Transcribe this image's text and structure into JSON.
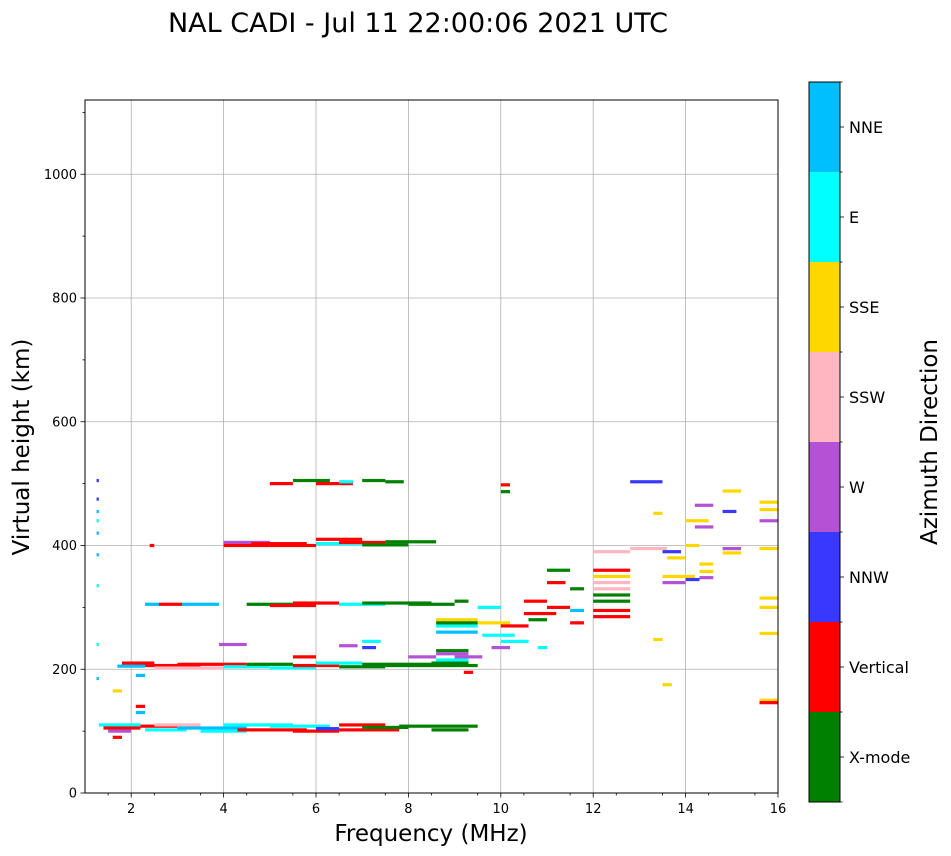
{
  "chart_data": {
    "type": "scatter",
    "title": "NAL CADI - Jul 11 22:00:06 2021 UTC",
    "xlabel": "Frequency (MHz)",
    "ylabel": "Virtual height (km)",
    "xlim": [
      1,
      16
    ],
    "ylim": [
      0,
      1120
    ],
    "xticks": [
      2,
      4,
      6,
      8,
      10,
      12,
      14,
      16
    ],
    "yticks": [
      0,
      200,
      400,
      600,
      800,
      1000
    ],
    "grid": true,
    "colorbar": {
      "label": "Azimuth Direction",
      "categories": [
        "X-mode",
        "Vertical",
        "NNW",
        "W",
        "SSW",
        "SSE",
        "E",
        "NNE"
      ],
      "colors": {
        "X-mode": "#008000",
        "Vertical": "#ff0000",
        "NNW": "#3838ff",
        "W": "#b452d6",
        "SSW": "#ffb6c1",
        "SSE": "#ffd700",
        "E": "#00ffff",
        "NNE": "#00bfff"
      }
    },
    "traces": [
      {
        "x0": 1.3,
        "x1": 2.2,
        "y": 110,
        "dir": "E"
      },
      {
        "x0": 1.4,
        "x1": 2.2,
        "y": 105,
        "dir": "Vertical"
      },
      {
        "x0": 1.5,
        "x1": 2.0,
        "y": 100,
        "dir": "W"
      },
      {
        "x0": 2.2,
        "x1": 3.0,
        "y": 108,
        "dir": "Vertical"
      },
      {
        "x0": 2.3,
        "x1": 3.2,
        "y": 102,
        "dir": "E"
      },
      {
        "x0": 2.5,
        "x1": 3.5,
        "y": 110,
        "dir": "SSW"
      },
      {
        "x0": 3.0,
        "x1": 4.5,
        "y": 105,
        "dir": "NNE"
      },
      {
        "x0": 3.5,
        "x1": 4.5,
        "y": 100,
        "dir": "E"
      },
      {
        "x0": 4.0,
        "x1": 5.5,
        "y": 110,
        "dir": "E"
      },
      {
        "x0": 4.3,
        "x1": 5.8,
        "y": 102,
        "dir": "Vertical"
      },
      {
        "x0": 5.0,
        "x1": 6.3,
        "y": 108,
        "dir": "E"
      },
      {
        "x0": 5.5,
        "x1": 6.5,
        "y": 100,
        "dir": "Vertical"
      },
      {
        "x0": 6.0,
        "x1": 6.5,
        "y": 104,
        "dir": "NNW"
      },
      {
        "x0": 6.5,
        "x1": 7.5,
        "y": 110,
        "dir": "Vertical"
      },
      {
        "x0": 6.5,
        "x1": 7.8,
        "y": 102,
        "dir": "Vertical"
      },
      {
        "x0": 7.0,
        "x1": 8.0,
        "y": 106,
        "dir": "X-mode"
      },
      {
        "x0": 7.8,
        "x1": 9.5,
        "y": 108,
        "dir": "X-mode"
      },
      {
        "x0": 8.5,
        "x1": 9.3,
        "y": 102,
        "dir": "X-mode"
      },
      {
        "x0": 1.7,
        "x1": 2.3,
        "y": 205,
        "dir": "NNE"
      },
      {
        "x0": 1.8,
        "x1": 2.5,
        "y": 210,
        "dir": "Vertical"
      },
      {
        "x0": 2.3,
        "x1": 3.5,
        "y": 206,
        "dir": "Vertical"
      },
      {
        "x0": 2.5,
        "x1": 4.0,
        "y": 202,
        "dir": "SSW"
      },
      {
        "x0": 3.0,
        "x1": 4.5,
        "y": 208,
        "dir": "Vertical"
      },
      {
        "x0": 4.0,
        "x1": 5.0,
        "y": 204,
        "dir": "E"
      },
      {
        "x0": 4.5,
        "x1": 5.5,
        "y": 208,
        "dir": "X-mode"
      },
      {
        "x0": 5.0,
        "x1": 6.0,
        "y": 202,
        "dir": "E"
      },
      {
        "x0": 5.5,
        "x1": 6.5,
        "y": 206,
        "dir": "Vertical"
      },
      {
        "x0": 6.0,
        "x1": 7.0,
        "y": 210,
        "dir": "E"
      },
      {
        "x0": 6.5,
        "x1": 7.5,
        "y": 204,
        "dir": "X-mode"
      },
      {
        "x0": 7.0,
        "x1": 8.5,
        "y": 208,
        "dir": "X-mode"
      },
      {
        "x0": 7.5,
        "x1": 9.5,
        "y": 206,
        "dir": "X-mode"
      },
      {
        "x0": 8.5,
        "x1": 9.3,
        "y": 210,
        "dir": "X-mode"
      },
      {
        "x0": 3.9,
        "x1": 4.5,
        "y": 240,
        "dir": "W"
      },
      {
        "x0": 6.5,
        "x1": 6.9,
        "y": 238,
        "dir": "W"
      },
      {
        "x0": 8.0,
        "x1": 8.6,
        "y": 220,
        "dir": "W"
      },
      {
        "x0": 2.3,
        "x1": 2.6,
        "y": 305,
        "dir": "NNE"
      },
      {
        "x0": 2.6,
        "x1": 3.1,
        "y": 305,
        "dir": "Vertical"
      },
      {
        "x0": 3.1,
        "x1": 3.9,
        "y": 305,
        "dir": "NNE"
      },
      {
        "x0": 4.5,
        "x1": 5.5,
        "y": 305,
        "dir": "X-mode"
      },
      {
        "x0": 5.0,
        "x1": 6.0,
        "y": 303,
        "dir": "Vertical"
      },
      {
        "x0": 5.5,
        "x1": 6.5,
        "y": 307,
        "dir": "Vertical"
      },
      {
        "x0": 6.5,
        "x1": 7.5,
        "y": 305,
        "dir": "E"
      },
      {
        "x0": 7.0,
        "x1": 8.5,
        "y": 307,
        "dir": "X-mode"
      },
      {
        "x0": 8.0,
        "x1": 9.0,
        "y": 305,
        "dir": "X-mode"
      },
      {
        "x0": 9.0,
        "x1": 9.3,
        "y": 310,
        "dir": "X-mode"
      },
      {
        "x0": 4.0,
        "x1": 5.0,
        "y": 405,
        "dir": "W"
      },
      {
        "x0": 4.0,
        "x1": 5.0,
        "y": 400,
        "dir": "Vertical"
      },
      {
        "x0": 4.6,
        "x1": 5.8,
        "y": 403,
        "dir": "Vertical"
      },
      {
        "x0": 5.0,
        "x1": 6.0,
        "y": 400,
        "dir": "Vertical"
      },
      {
        "x0": 6.0,
        "x1": 7.0,
        "y": 403,
        "dir": "E"
      },
      {
        "x0": 6.5,
        "x1": 7.5,
        "y": 405,
        "dir": "Vertical"
      },
      {
        "x0": 7.0,
        "x1": 8.0,
        "y": 401,
        "dir": "X-mode"
      },
      {
        "x0": 7.5,
        "x1": 8.6,
        "y": 406,
        "dir": "X-mode"
      },
      {
        "x0": 6.0,
        "x1": 7.0,
        "y": 410,
        "dir": "Vertical"
      },
      {
        "x0": 5.0,
        "x1": 5.5,
        "y": 500,
        "dir": "Vertical"
      },
      {
        "x0": 5.5,
        "x1": 6.3,
        "y": 505,
        "dir": "X-mode"
      },
      {
        "x0": 6.0,
        "x1": 6.8,
        "y": 500,
        "dir": "Vertical"
      },
      {
        "x0": 6.5,
        "x1": 6.8,
        "y": 503,
        "dir": "E"
      },
      {
        "x0": 7.0,
        "x1": 7.5,
        "y": 505,
        "dir": "X-mode"
      },
      {
        "x0": 7.5,
        "x1": 7.9,
        "y": 503,
        "dir": "X-mode"
      },
      {
        "x0": 8.6,
        "x1": 9.5,
        "y": 280,
        "dir": "SSE"
      },
      {
        "x0": 8.6,
        "x1": 9.5,
        "y": 270,
        "dir": "E"
      },
      {
        "x0": 8.6,
        "x1": 9.5,
        "y": 275,
        "dir": "X-mode"
      },
      {
        "x0": 8.6,
        "x1": 9.5,
        "y": 260,
        "dir": "NNE"
      },
      {
        "x0": 8.6,
        "x1": 9.3,
        "y": 230,
        "dir": "X-mode"
      },
      {
        "x0": 8.6,
        "x1": 9.3,
        "y": 225,
        "dir": "W"
      },
      {
        "x0": 8.6,
        "x1": 9.3,
        "y": 215,
        "dir": "E"
      },
      {
        "x0": 9.0,
        "x1": 9.6,
        "y": 220,
        "dir": "W"
      },
      {
        "x0": 9.5,
        "x1": 10.0,
        "y": 300,
        "dir": "E"
      },
      {
        "x0": 9.5,
        "x1": 10.2,
        "y": 275,
        "dir": "SSE"
      },
      {
        "x0": 9.6,
        "x1": 10.3,
        "y": 255,
        "dir": "E"
      },
      {
        "x0": 10.0,
        "x1": 10.6,
        "y": 270,
        "dir": "Vertical"
      },
      {
        "x0": 10.0,
        "x1": 10.6,
        "y": 245,
        "dir": "E"
      },
      {
        "x0": 10.5,
        "x1": 11.0,
        "y": 310,
        "dir": "Vertical"
      },
      {
        "x0": 10.5,
        "x1": 11.2,
        "y": 290,
        "dir": "Vertical"
      },
      {
        "x0": 10.6,
        "x1": 11.0,
        "y": 280,
        "dir": "X-mode"
      },
      {
        "x0": 11.0,
        "x1": 11.5,
        "y": 300,
        "dir": "Vertical"
      },
      {
        "x0": 11.0,
        "x1": 11.5,
        "y": 360,
        "dir": "X-mode"
      },
      {
        "x0": 11.5,
        "x1": 11.8,
        "y": 330,
        "dir": "X-mode"
      },
      {
        "x0": 11.5,
        "x1": 11.8,
        "y": 295,
        "dir": "NNE"
      },
      {
        "x0": 11.5,
        "x1": 11.8,
        "y": 275,
        "dir": "Vertical"
      },
      {
        "x0": 11.0,
        "x1": 11.4,
        "y": 340,
        "dir": "Vertical"
      },
      {
        "x0": 12.0,
        "x1": 12.8,
        "y": 390,
        "dir": "SSW"
      },
      {
        "x0": 12.0,
        "x1": 12.8,
        "y": 360,
        "dir": "Vertical"
      },
      {
        "x0": 12.0,
        "x1": 12.8,
        "y": 350,
        "dir": "SSE"
      },
      {
        "x0": 12.0,
        "x1": 12.8,
        "y": 340,
        "dir": "SSW"
      },
      {
        "x0": 12.0,
        "x1": 12.8,
        "y": 330,
        "dir": "SSW"
      },
      {
        "x0": 12.0,
        "x1": 12.8,
        "y": 320,
        "dir": "X-mode"
      },
      {
        "x0": 12.0,
        "x1": 12.8,
        "y": 310,
        "dir": "X-mode"
      },
      {
        "x0": 12.0,
        "x1": 12.8,
        "y": 295,
        "dir": "Vertical"
      },
      {
        "x0": 12.0,
        "x1": 12.8,
        "y": 285,
        "dir": "Vertical"
      },
      {
        "x0": 12.8,
        "x1": 13.6,
        "y": 395,
        "dir": "SSW"
      },
      {
        "x0": 13.5,
        "x1": 14.0,
        "y": 340,
        "dir": "W"
      },
      {
        "x0": 13.5,
        "x1": 14.2,
        "y": 350,
        "dir": "SSE"
      },
      {
        "x0": 14.0,
        "x1": 14.3,
        "y": 345,
        "dir": "NNW"
      },
      {
        "x0": 14.0,
        "x1": 14.3,
        "y": 400,
        "dir": "SSE"
      },
      {
        "x0": 14.0,
        "x1": 14.5,
        "y": 440,
        "dir": "SSE"
      },
      {
        "x0": 13.5,
        "x1": 13.9,
        "y": 390,
        "dir": "NNW"
      },
      {
        "x0": 13.6,
        "x1": 14.0,
        "y": 380,
        "dir": "SSE"
      },
      {
        "x0": 14.2,
        "x1": 14.6,
        "y": 430,
        "dir": "W"
      },
      {
        "x0": 14.2,
        "x1": 14.6,
        "y": 465,
        "dir": "W"
      },
      {
        "x0": 14.3,
        "x1": 14.6,
        "y": 370,
        "dir": "SSE"
      },
      {
        "x0": 14.3,
        "x1": 14.6,
        "y": 358,
        "dir": "SSE"
      },
      {
        "x0": 14.3,
        "x1": 14.6,
        "y": 348,
        "dir": "W"
      },
      {
        "x0": 12.8,
        "x1": 13.5,
        "y": 503,
        "dir": "NNW"
      },
      {
        "x0": 14.8,
        "x1": 15.2,
        "y": 488,
        "dir": "SSE"
      },
      {
        "x0": 14.8,
        "x1": 15.1,
        "y": 455,
        "dir": "NNW"
      },
      {
        "x0": 14.8,
        "x1": 15.2,
        "y": 395,
        "dir": "W"
      },
      {
        "x0": 14.8,
        "x1": 15.2,
        "y": 388,
        "dir": "SSE"
      },
      {
        "x0": 15.6,
        "x1": 16.0,
        "y": 470,
        "dir": "SSE"
      },
      {
        "x0": 15.6,
        "x1": 16.0,
        "y": 458,
        "dir": "SSE"
      },
      {
        "x0": 15.6,
        "x1": 16.0,
        "y": 440,
        "dir": "W"
      },
      {
        "x0": 15.6,
        "x1": 16.0,
        "y": 395,
        "dir": "SSE"
      },
      {
        "x0": 15.6,
        "x1": 16.0,
        "y": 315,
        "dir": "SSE"
      },
      {
        "x0": 15.6,
        "x1": 16.0,
        "y": 300,
        "dir": "SSE"
      },
      {
        "x0": 15.6,
        "x1": 16.0,
        "y": 258,
        "dir": "SSE"
      },
      {
        "x0": 15.6,
        "x1": 16.0,
        "y": 150,
        "dir": "SSE"
      },
      {
        "x0": 15.6,
        "x1": 16.0,
        "y": 146,
        "dir": "Vertical"
      },
      {
        "x0": 13.5,
        "x1": 13.7,
        "y": 175,
        "dir": "SSE"
      },
      {
        "x0": 13.3,
        "x1": 13.5,
        "y": 248,
        "dir": "SSE"
      },
      {
        "x0": 13.3,
        "x1": 13.5,
        "y": 452,
        "dir": "SSE"
      },
      {
        "x0": 10.0,
        "x1": 10.2,
        "y": 498,
        "dir": "Vertical"
      },
      {
        "x0": 10.0,
        "x1": 10.2,
        "y": 487,
        "dir": "X-mode"
      },
      {
        "x0": 1.6,
        "x1": 1.8,
        "y": 165,
        "dir": "SSE"
      },
      {
        "x0": 1.6,
        "x1": 1.8,
        "y": 90,
        "dir": "Vertical"
      },
      {
        "x0": 2.1,
        "x1": 2.3,
        "y": 140,
        "dir": "Vertical"
      },
      {
        "x0": 2.1,
        "x1": 2.3,
        "y": 130,
        "dir": "NNE"
      },
      {
        "x0": 2.1,
        "x1": 2.3,
        "y": 190,
        "dir": "NNE"
      },
      {
        "x0": 2.4,
        "x1": 2.5,
        "y": 400,
        "dir": "Vertical"
      },
      {
        "x0": 1.25,
        "x1": 1.3,
        "y": 505,
        "dir": "NNW"
      },
      {
        "x0": 1.25,
        "x1": 1.3,
        "y": 475,
        "dir": "NNW"
      },
      {
        "x0": 1.25,
        "x1": 1.3,
        "y": 455,
        "dir": "NNE"
      },
      {
        "x0": 1.25,
        "x1": 1.3,
        "y": 440,
        "dir": "E"
      },
      {
        "x0": 1.25,
        "x1": 1.3,
        "y": 420,
        "dir": "NNE"
      },
      {
        "x0": 1.25,
        "x1": 1.3,
        "y": 385,
        "dir": "NNE"
      },
      {
        "x0": 1.25,
        "x1": 1.3,
        "y": 335,
        "dir": "E"
      },
      {
        "x0": 1.25,
        "x1": 1.3,
        "y": 240,
        "dir": "E"
      },
      {
        "x0": 1.25,
        "x1": 1.3,
        "y": 185,
        "dir": "NNE"
      },
      {
        "x0": 7.0,
        "x1": 7.4,
        "y": 245,
        "dir": "E"
      },
      {
        "x0": 7.0,
        "x1": 7.3,
        "y": 235,
        "dir": "NNW"
      },
      {
        "x0": 5.5,
        "x1": 6.0,
        "y": 220,
        "dir": "Vertical"
      },
      {
        "x0": 9.2,
        "x1": 9.4,
        "y": 195,
        "dir": "Vertical"
      },
      {
        "x0": 9.8,
        "x1": 10.2,
        "y": 235,
        "dir": "W"
      },
      {
        "x0": 10.8,
        "x1": 11.0,
        "y": 235,
        "dir": "E"
      }
    ]
  }
}
